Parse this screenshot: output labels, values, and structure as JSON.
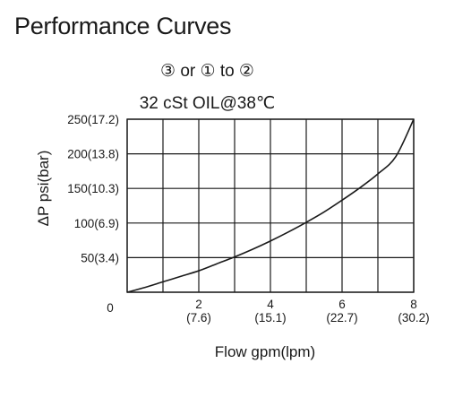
{
  "title": "Performance Curves",
  "chart_data": {
    "type": "line",
    "title": "③ or ① to ②",
    "subtitle": "32 cSt OIL@38℃",
    "xlabel": "Flow gpm(lpm)",
    "ylabel": "ΔP psi(bar)",
    "xlim": [
      0,
      8
    ],
    "ylim": [
      0,
      250
    ],
    "grid": true,
    "origin_label": "0",
    "x_ticks": [
      {
        "value": 2,
        "label": "2",
        "sublabel": "(7.6)"
      },
      {
        "value": 4,
        "label": "4",
        "sublabel": "(15.1)"
      },
      {
        "value": 6,
        "label": "6",
        "sublabel": "(22.7)"
      },
      {
        "value": 8,
        "label": "8",
        "sublabel": "(30.2)"
      }
    ],
    "y_ticks": [
      {
        "value": 50,
        "label": "50(3.4)"
      },
      {
        "value": 100,
        "label": "100(6.9)"
      },
      {
        "value": 150,
        "label": "150(10.3)"
      },
      {
        "value": 200,
        "label": "200(13.8)"
      },
      {
        "value": 250,
        "label": "250(17.2)"
      }
    ],
    "series": [
      {
        "color": "#1a1a1a",
        "x": [
          0,
          0.5,
          1,
          1.5,
          2,
          2.5,
          3,
          3.5,
          4,
          4.5,
          5,
          5.5,
          6,
          6.5,
          7,
          7.5,
          8
        ],
        "y": [
          0,
          7,
          15,
          23,
          31,
          41,
          51,
          62,
          74,
          87,
          101,
          116,
          133,
          151,
          171,
          196,
          250
        ]
      }
    ]
  }
}
